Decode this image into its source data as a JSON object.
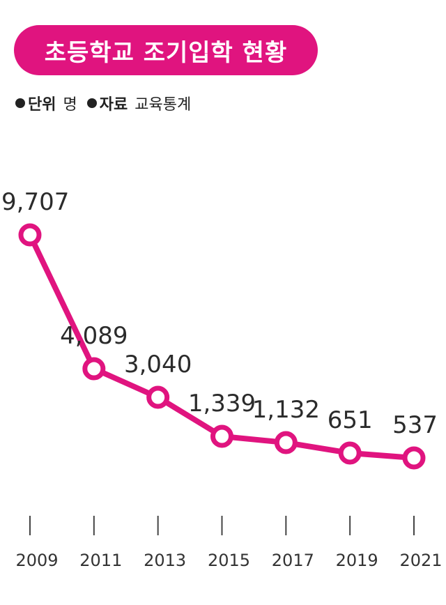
{
  "header": {
    "title": "초등학교 조기입학 현황",
    "unit_label": "단위",
    "unit_value": "명",
    "source_label": "자료",
    "source_value": "교육통계"
  },
  "colors": {
    "accent": "#e0147f",
    "text": "#222222",
    "axis": "#333333"
  },
  "chart_data": {
    "type": "line",
    "title": "초등학교 조기입학 현황",
    "xlabel": "",
    "ylabel": "",
    "categories": [
      "2009",
      "2011",
      "2013",
      "2015",
      "2017",
      "2019",
      "2021"
    ],
    "values": [
      9707,
      4089,
      3040,
      1339,
      1132,
      651,
      537
    ],
    "value_labels": [
      "9,707",
      "4,089",
      "3,040",
      "1,339",
      "1,132",
      "651",
      "537"
    ],
    "grid": false,
    "legend": "none"
  }
}
